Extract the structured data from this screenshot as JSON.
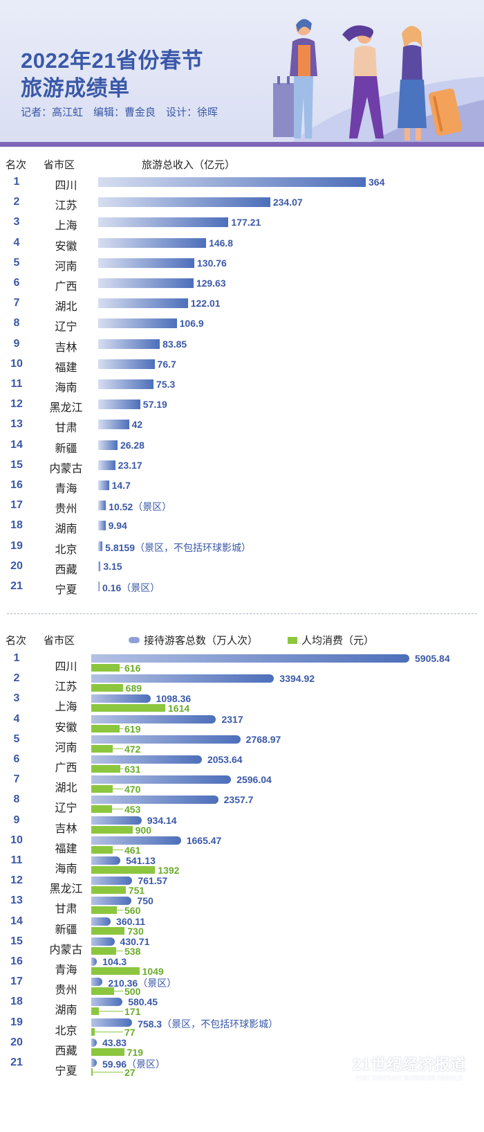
{
  "header": {
    "title": "2022年21省份春节\n旅游成绩单",
    "credits": "记者：高江虹　编辑：曹金良　设计：徐晖"
  },
  "colors": {
    "accent_blue": "#3a58a8",
    "bar_blue": "#4d6fba",
    "bar_green": "#8cc63f",
    "band_purple": "#7f66b8"
  },
  "chart_data": [
    {
      "type": "bar",
      "orientation": "horizontal",
      "rank_header": "名次",
      "category_header": "省市区",
      "title": "旅游总收入（亿元）",
      "xlim": [
        0,
        364
      ],
      "ranks": [
        "1",
        "2",
        "3",
        "4",
        "5",
        "6",
        "7",
        "8",
        "9",
        "10",
        "11",
        "12",
        "13",
        "14",
        "15",
        "16",
        "17",
        "18",
        "19",
        "20",
        "21"
      ],
      "categories": [
        "四川",
        "江苏",
        "上海",
        "安徽",
        "河南",
        "广西",
        "湖北",
        "辽宁",
        "吉林",
        "福建",
        "海南",
        "黑龙江",
        "甘肃",
        "新疆",
        "内蒙古",
        "青海",
        "贵州",
        "湖南",
        "北京",
        "西藏",
        "宁夏"
      ],
      "values": [
        364,
        234.07,
        177.21,
        146.8,
        130.76,
        129.63,
        122.01,
        106.9,
        83.85,
        76.7,
        75.3,
        57.19,
        42,
        26.28,
        23.17,
        14.7,
        10.52,
        9.94,
        5.8159,
        3.15,
        0.16
      ],
      "labels": [
        "364",
        "234.07",
        "177.21",
        "146.8",
        "130.76",
        "129.63",
        "122.01",
        "106.9",
        "83.85",
        "76.7",
        "75.3",
        "57.19",
        "42",
        "26.28",
        "23.17",
        "14.7",
        "10.52",
        "9.94",
        "5.8159",
        "3.15",
        "0.16"
      ],
      "notes": [
        "",
        "",
        "",
        "",
        "",
        "",
        "",
        "",
        "",
        "",
        "",
        "",
        "",
        "",
        "",
        "",
        "（景区）",
        "",
        "（景区，不包括环球影城）",
        "",
        "（景区）"
      ]
    },
    {
      "type": "bar",
      "orientation": "horizontal",
      "rank_header": "名次",
      "category_header": "省市区",
      "xlim": [
        0,
        5905.84
      ],
      "ranks": [
        "1",
        "2",
        "3",
        "4",
        "5",
        "6",
        "7",
        "8",
        "9",
        "10",
        "11",
        "12",
        "13",
        "14",
        "15",
        "16",
        "17",
        "18",
        "19",
        "20",
        "21"
      ],
      "categories": [
        "四川",
        "江苏",
        "上海",
        "安徽",
        "河南",
        "广西",
        "湖北",
        "辽宁",
        "吉林",
        "福建",
        "海南",
        "黑龙江",
        "甘肃",
        "新疆",
        "内蒙古",
        "青海",
        "贵州",
        "湖南",
        "北京",
        "西藏",
        "宁夏"
      ],
      "series": [
        {
          "name": "接待游客总数（万人次）",
          "values": [
            5905.84,
            3394.92,
            1098.36,
            2317,
            2768.97,
            2053.64,
            2596.04,
            2357.7,
            934.14,
            1665.47,
            541.13,
            761.57,
            750,
            360.11,
            430.71,
            104.3,
            210.36,
            580.45,
            758.3,
            43.83,
            59.96
          ],
          "labels": [
            "5905.84",
            "3394.92",
            "1098.36",
            "2317",
            "2768.97",
            "2053.64",
            "2596.04",
            "2357.7",
            "934.14",
            "1665.47",
            "541.13",
            "761.57",
            "750",
            "360.11",
            "430.71",
            "104.3",
            "210.36",
            "580.45",
            "758.3",
            "43.83",
            "59.96"
          ],
          "notes": [
            "",
            "",
            "",
            "",
            "",
            "",
            "",
            "",
            "",
            "",
            "",
            "",
            "",
            "",
            "",
            "",
            "（景区）",
            "",
            "（景区，不包括环球影城）",
            "",
            "（景区）"
          ]
        },
        {
          "name": "人均消费（元）",
          "values": [
            616,
            689,
            1614,
            619,
            472,
            631,
            470,
            453,
            900,
            461,
            1392,
            751,
            560,
            730,
            538,
            1049,
            500,
            171,
            77,
            719,
            27
          ],
          "labels": [
            "616",
            "689",
            "1614",
            "619",
            "472",
            "631",
            "470",
            "453",
            "900",
            "461",
            "1392",
            "751",
            "560",
            "730",
            "538",
            "1049",
            "500",
            "171",
            "77",
            "719",
            "27"
          ]
        }
      ]
    }
  ],
  "watermark": {
    "line1": "21世纪经济报道",
    "line2": "21ST CENTURY BUSINESS HERALD"
  }
}
